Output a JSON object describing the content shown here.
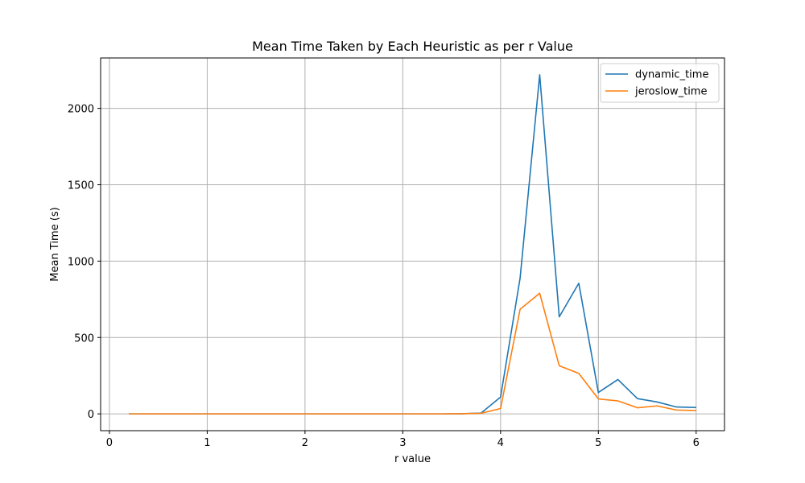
{
  "chart_data": {
    "type": "line",
    "title": "Mean Time Taken by Each Heuristic as per r Value",
    "xlabel": "r value",
    "ylabel": "Mean Time (s)",
    "xlim": [
      -0.09,
      6.29
    ],
    "ylim": [
      -110,
      2330
    ],
    "xticks": [
      0,
      1,
      2,
      3,
      4,
      5,
      6
    ],
    "yticks": [
      0,
      500,
      1000,
      1500,
      2000
    ],
    "grid": true,
    "legend_position": "top-right",
    "x": [
      0.2,
      0.4,
      0.6,
      0.8,
      1.0,
      1.2,
      1.4,
      1.6,
      1.8,
      2.0,
      2.2,
      2.4,
      2.6,
      2.8,
      3.0,
      3.2,
      3.4,
      3.6,
      3.8,
      4.0,
      4.2,
      4.4,
      4.6,
      4.8,
      5.0,
      5.2,
      5.4,
      5.6,
      5.8,
      6.0
    ],
    "series": [
      {
        "name": "dynamic_time",
        "color": "#1f77b4",
        "values": [
          0,
          0,
          0,
          0,
          0,
          0,
          0,
          0,
          0,
          0,
          0,
          0,
          0,
          0,
          0,
          0,
          0,
          1,
          5,
          110,
          890,
          2220,
          635,
          855,
          140,
          225,
          100,
          78,
          45,
          42
        ]
      },
      {
        "name": "jeroslow_time",
        "color": "#ff7f0e",
        "values": [
          0,
          0,
          0,
          0,
          0,
          0,
          0,
          0,
          0,
          0,
          0,
          0,
          0,
          0,
          0,
          0,
          0,
          1,
          4,
          35,
          685,
          790,
          315,
          265,
          98,
          85,
          40,
          52,
          25,
          22
        ]
      }
    ]
  }
}
